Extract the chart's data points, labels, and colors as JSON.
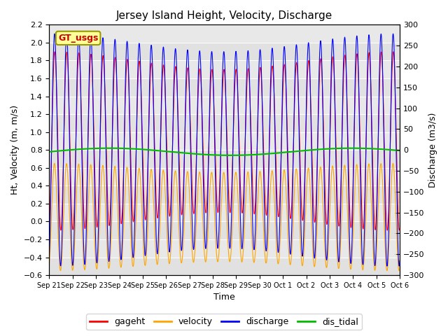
{
  "title": "Jersey Island Height, Velocity, Discharge",
  "xlabel": "Time",
  "ylabel_left": "Ht, Velocity (m, m/s)",
  "ylabel_right": "Discharge (m3/s)",
  "ylim_left": [
    -0.6,
    2.2
  ],
  "ylim_right": [
    -300,
    300
  ],
  "yticks_left": [
    -0.6,
    -0.4,
    -0.2,
    0.0,
    0.2,
    0.4,
    0.6,
    0.8,
    1.0,
    1.2,
    1.4,
    1.6,
    1.8,
    2.0,
    2.2
  ],
  "yticks_right": [
    -300,
    -250,
    -200,
    -150,
    -100,
    -50,
    0,
    50,
    100,
    150,
    200,
    250,
    300
  ],
  "colors": {
    "gageht": "#FF0000",
    "velocity": "#FFA500",
    "discharge": "#0000FF",
    "dis_tidal": "#00BB00"
  },
  "legend_label": "GT_usgs",
  "legend_box_facecolor": "#FFFF99",
  "legend_box_edgecolor": "#999900",
  "legend_text_color": "#CC0000",
  "fig_facecolor": "#FFFFFF",
  "plot_facecolor": "#E8E8E8",
  "grid_color": "#FFFFFF",
  "title_fontsize": 11,
  "axis_fontsize": 9,
  "tick_fontsize": 8,
  "xtick_fontsize": 7,
  "line_width": 0.8,
  "dis_tidal_lw": 1.5
}
